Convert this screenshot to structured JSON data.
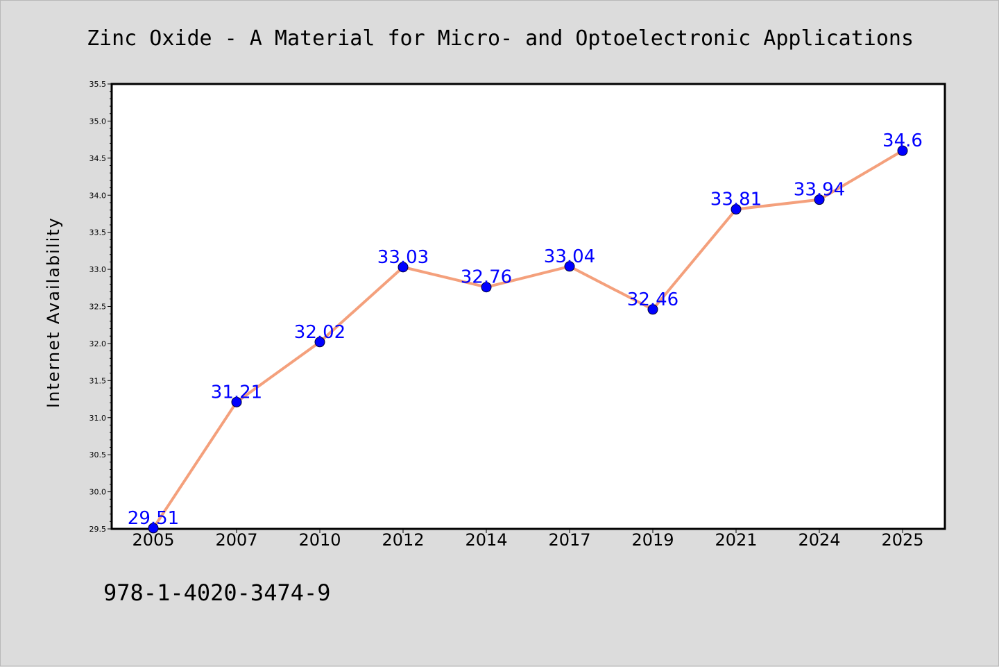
{
  "title": "Zinc Oxide - A Material for Micro- and Optoelectronic Applications",
  "footer": "978-1-4020-3474-9",
  "colors": {
    "background": "#dcdcdc",
    "plot_background": "#ffffff",
    "line": "#f4a07c",
    "marker": "#0000ff",
    "data_label": "#0000ff",
    "axis": "#000000"
  },
  "chart_data": {
    "type": "line",
    "title": "Zinc Oxide - A Material for Micro- and Optoelectronic Applications",
    "xlabel": "",
    "ylabel": "Internet Availability",
    "categories": [
      "2005",
      "2007",
      "2010",
      "2012",
      "2014",
      "2017",
      "2019",
      "2021",
      "2024",
      "2025"
    ],
    "series": [
      {
        "values": [
          29.51,
          31.21,
          32.02,
          33.03,
          32.76,
          33.04,
          32.46,
          33.81,
          33.94,
          34.6
        ],
        "labels": [
          "29.51",
          "31.21",
          "32.02",
          "33.03",
          "32.76",
          "33.04",
          "32.46",
          "33.81",
          "33.94",
          "34.6"
        ]
      }
    ],
    "ylim": [
      29.5,
      35.5
    ],
    "yticks": [
      "29.5",
      "30.0",
      "30.5",
      "31.0",
      "31.5",
      "32.0",
      "32.5",
      "33.0",
      "33.5",
      "34.0",
      "34.5",
      "35.0",
      "35.5"
    ],
    "grid": false,
    "legend": "none",
    "marker": "circle"
  }
}
